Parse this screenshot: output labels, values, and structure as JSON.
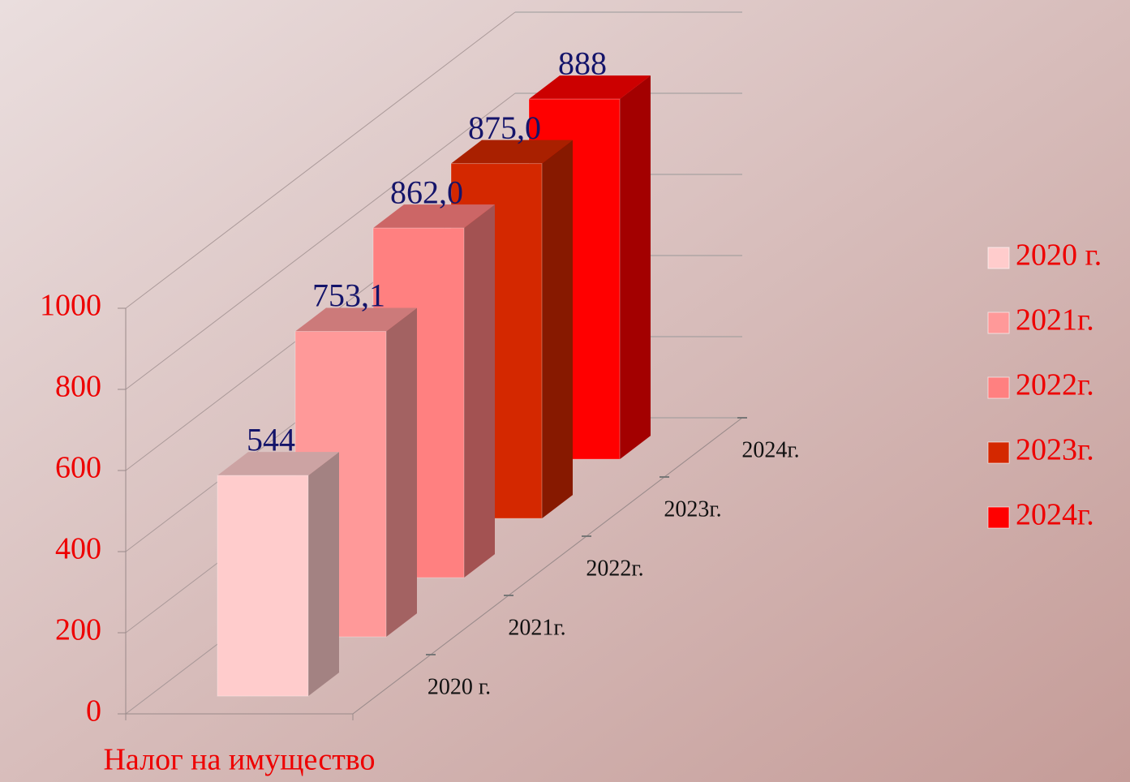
{
  "chart_data": {
    "type": "bar3d",
    "categories": [
      "Налог на имущество"
    ],
    "series": [
      {
        "name": "2020 г.",
        "color": "#ffcccc",
        "values": [
          544
        ],
        "value_labels": [
          "544"
        ]
      },
      {
        "name": "2021г.",
        "color": "#ff9999",
        "values": [
          753.1
        ],
        "value_labels": [
          "753,1"
        ]
      },
      {
        "name": "2022г.",
        "color": "#ff8080",
        "values": [
          862
        ],
        "value_labels": [
          "862,0"
        ]
      },
      {
        "name": "2023г.",
        "color": "#d42800",
        "values": [
          875
        ],
        "value_labels": [
          "875,0"
        ]
      },
      {
        "name": "2024г.",
        "color": "#ff0000",
        "values": [
          888
        ],
        "value_labels": [
          "888"
        ]
      }
    ],
    "ylim": [
      0,
      1000
    ],
    "yticks": [
      0,
      200,
      400,
      600,
      800,
      1000
    ],
    "grid": true,
    "legend": "right"
  }
}
